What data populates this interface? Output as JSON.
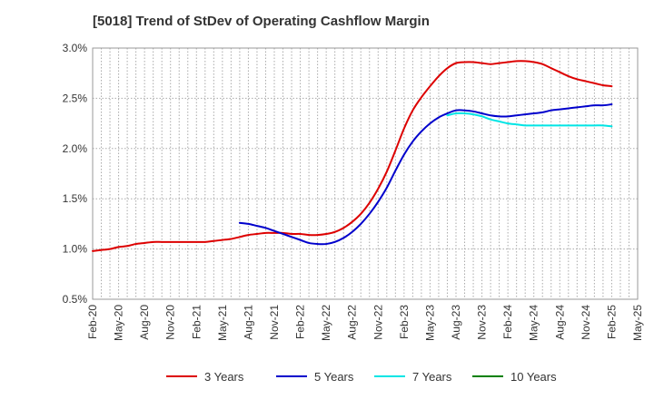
{
  "chart_data": {
    "type": "line",
    "title": "[5018]  Trend of StDev of Operating Cashflow Margin",
    "xlabel": "",
    "ylabel": "",
    "ylim": [
      0.5,
      3.0
    ],
    "x_tick_labels": [
      "Feb-20",
      "May-20",
      "Aug-20",
      "Nov-20",
      "Feb-21",
      "May-21",
      "Aug-21",
      "Nov-21",
      "Feb-22",
      "May-22",
      "Aug-22",
      "Nov-22",
      "Feb-23",
      "May-23",
      "Aug-23",
      "Nov-23",
      "Feb-24",
      "May-24",
      "Aug-24",
      "Nov-24",
      "Feb-25",
      "May-25"
    ],
    "y_ticks": [
      0.5,
      1.0,
      1.5,
      2.0,
      2.5,
      3.0
    ],
    "y_tick_labels": [
      "0.5%",
      "1.0%",
      "1.5%",
      "2.0%",
      "2.5%",
      "3.0%"
    ],
    "grid": true,
    "legend_position": "bottom",
    "series": [
      {
        "name": "3 Years",
        "color": "#dd0000",
        "x": [
          "Feb-20",
          "Mar-20",
          "Apr-20",
          "May-20",
          "Jun-20",
          "Jul-20",
          "Aug-20",
          "Sep-20",
          "Oct-20",
          "Nov-20",
          "Dec-20",
          "Jan-21",
          "Feb-21",
          "Mar-21",
          "Apr-21",
          "May-21",
          "Jun-21",
          "Jul-21",
          "Aug-21",
          "Sep-21",
          "Oct-21",
          "Nov-21",
          "Dec-21",
          "Jan-22",
          "Feb-22",
          "Mar-22",
          "Apr-22",
          "May-22",
          "Jun-22",
          "Jul-22",
          "Aug-22",
          "Sep-22",
          "Oct-22",
          "Nov-22",
          "Dec-22",
          "Jan-23",
          "Feb-23",
          "Mar-23",
          "Apr-23",
          "May-23",
          "Jun-23",
          "Jul-23",
          "Aug-23",
          "Sep-23",
          "Oct-23",
          "Nov-23",
          "Dec-23",
          "Jan-24",
          "Feb-24",
          "Mar-24",
          "Apr-24",
          "May-24",
          "Jun-24",
          "Jul-24",
          "Aug-24",
          "Sep-24",
          "Oct-24",
          "Nov-24",
          "Dec-24",
          "Jan-25",
          "Feb-25"
        ],
        "values": [
          0.98,
          0.99,
          1.0,
          1.02,
          1.03,
          1.05,
          1.06,
          1.07,
          1.07,
          1.07,
          1.07,
          1.07,
          1.07,
          1.07,
          1.08,
          1.09,
          1.1,
          1.12,
          1.14,
          1.15,
          1.16,
          1.16,
          1.16,
          1.15,
          1.15,
          1.14,
          1.14,
          1.15,
          1.17,
          1.21,
          1.27,
          1.35,
          1.46,
          1.6,
          1.77,
          1.98,
          2.2,
          2.38,
          2.51,
          2.62,
          2.72,
          2.8,
          2.85,
          2.86,
          2.86,
          2.85,
          2.84,
          2.85,
          2.86,
          2.87,
          2.87,
          2.86,
          2.84,
          2.8,
          2.76,
          2.72,
          2.69,
          2.67,
          2.65,
          2.63,
          2.62
        ]
      },
      {
        "name": "5 Years",
        "color": "#0000cc",
        "x": [
          "Jul-21",
          "Aug-21",
          "Sep-21",
          "Oct-21",
          "Nov-21",
          "Dec-21",
          "Jan-22",
          "Feb-22",
          "Mar-22",
          "Apr-22",
          "May-22",
          "Jun-22",
          "Jul-22",
          "Aug-22",
          "Sep-22",
          "Oct-22",
          "Nov-22",
          "Dec-22",
          "Jan-23",
          "Feb-23",
          "Mar-23",
          "Apr-23",
          "May-23",
          "Jun-23",
          "Jul-23",
          "Aug-23",
          "Sep-23",
          "Oct-23",
          "Nov-23",
          "Dec-23",
          "Jan-24",
          "Feb-24",
          "Mar-24",
          "Apr-24",
          "May-24",
          "Jun-24",
          "Jul-24",
          "Aug-24",
          "Sep-24",
          "Oct-24",
          "Nov-24",
          "Dec-24",
          "Jan-25",
          "Feb-25"
        ],
        "values": [
          1.26,
          1.25,
          1.23,
          1.21,
          1.18,
          1.15,
          1.12,
          1.09,
          1.06,
          1.05,
          1.05,
          1.07,
          1.11,
          1.17,
          1.25,
          1.35,
          1.47,
          1.61,
          1.78,
          1.94,
          2.07,
          2.17,
          2.25,
          2.31,
          2.35,
          2.38,
          2.38,
          2.37,
          2.35,
          2.33,
          2.32,
          2.32,
          2.33,
          2.34,
          2.35,
          2.36,
          2.38,
          2.39,
          2.4,
          2.41,
          2.42,
          2.43,
          2.43,
          2.44
        ]
      },
      {
        "name": "7 Years",
        "color": "#00e5e5",
        "x": [
          "Jul-23",
          "Aug-23",
          "Sep-23",
          "Oct-23",
          "Nov-23",
          "Dec-23",
          "Jan-24",
          "Feb-24",
          "Mar-24",
          "Apr-24",
          "May-24",
          "Jun-24",
          "Jul-24",
          "Aug-24",
          "Sep-24",
          "Oct-24",
          "Nov-24",
          "Dec-24",
          "Jan-25",
          "Feb-25"
        ],
        "values": [
          2.33,
          2.35,
          2.35,
          2.34,
          2.32,
          2.29,
          2.27,
          2.25,
          2.24,
          2.23,
          2.23,
          2.23,
          2.23,
          2.23,
          2.23,
          2.23,
          2.23,
          2.23,
          2.23,
          2.22
        ]
      },
      {
        "name": "10 Years",
        "color": "#008000",
        "x": [],
        "values": []
      }
    ]
  }
}
